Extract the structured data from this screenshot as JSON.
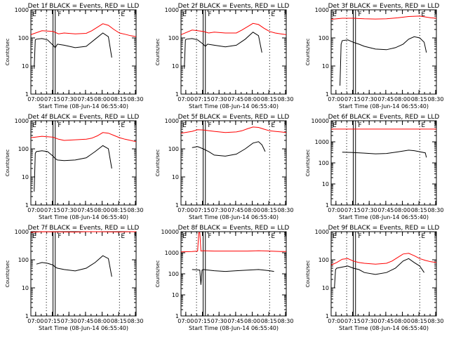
{
  "figure": {
    "x_tick_labels": [
      "07:00",
      "07:15",
      "07:30",
      "07:45",
      "08:00",
      "08:15",
      "08:30"
    ],
    "y_tick_labels_3dec": [
      "1",
      "10",
      "100",
      "1000"
    ],
    "y_tick_labels_4dec": [
      "1",
      "10",
      "100",
      "1000",
      "10000"
    ],
    "xlabel": "Start Time (08-Jun-14 06:55:40)",
    "ylabel": "Counts/sec",
    "events_color": "#000000",
    "lld_color": "#ff0000"
  },
  "chart_data": [
    {
      "type": "line",
      "title": "Det 1f BLACK = Events, RED = LLD",
      "ylog": true,
      "ylim": [
        1,
        1000
      ],
      "xlim_minutes": [
        0,
        95
      ],
      "markers": [
        {
          "label": "E",
          "x": 0
        },
        {
          "label": "F",
          "x": 23
        },
        {
          "label": "E",
          "x": 80
        }
      ],
      "dotted_lines": [
        14,
        80
      ],
      "solid_lines": [
        20,
        22
      ],
      "series": [
        {
          "name": "BLACK = Events",
          "color": "#000000",
          "x": [
            3,
            4,
            5,
            10,
            15,
            20,
            22,
            24,
            30,
            40,
            50,
            58,
            65,
            70,
            73
          ],
          "y": [
            8,
            85,
            90,
            95,
            85,
            55,
            45,
            60,
            55,
            45,
            50,
            90,
            150,
            110,
            20
          ]
        },
        {
          "name": "RED = LLD",
          "color": "#ff0000",
          "x": [
            0,
            10,
            20,
            25,
            30,
            40,
            50,
            55,
            60,
            65,
            70,
            75,
            80,
            85,
            90,
            95
          ],
          "y": [
            130,
            180,
            170,
            140,
            150,
            140,
            145,
            180,
            240,
            320,
            280,
            200,
            150,
            135,
            120,
            110
          ]
        }
      ]
    },
    {
      "type": "line",
      "title": "Det 2f BLACK = Events, RED = LLD",
      "ylog": true,
      "ylim": [
        1,
        1000
      ],
      "xlim_minutes": [
        0,
        95
      ],
      "markers": [
        {
          "label": "E",
          "x": 0
        },
        {
          "label": "F",
          "x": 23
        },
        {
          "label": "E",
          "x": 80
        }
      ],
      "dotted_lines": [
        14,
        80
      ],
      "solid_lines": [
        20,
        22
      ],
      "series": [
        {
          "name": "BLACK = Events",
          "color": "#000000",
          "x": [
            3,
            4,
            5,
            10,
            15,
            20,
            22,
            24,
            30,
            40,
            50,
            58,
            65,
            70,
            73
          ],
          "y": [
            8,
            85,
            90,
            95,
            85,
            60,
            50,
            60,
            55,
            48,
            55,
            90,
            160,
            120,
            30
          ]
        },
        {
          "name": "RED = LLD",
          "color": "#ff0000",
          "x": [
            0,
            10,
            20,
            25,
            30,
            40,
            50,
            55,
            60,
            65,
            70,
            75,
            80,
            85,
            90,
            95
          ],
          "y": [
            130,
            190,
            170,
            150,
            160,
            150,
            150,
            190,
            250,
            330,
            300,
            220,
            170,
            150,
            140,
            130
          ]
        }
      ]
    },
    {
      "type": "line",
      "title": "Det 3f BLACK = Events, RED = LLD",
      "ylog": true,
      "ylim": [
        1,
        1000
      ],
      "xlim_minutes": [
        0,
        95
      ],
      "markers": [
        {
          "label": "E",
          "x": 0
        },
        {
          "label": "F",
          "x": 23
        },
        {
          "label": "E",
          "x": 80
        }
      ],
      "dotted_lines": [
        14,
        80
      ],
      "solid_lines": [
        20,
        22
      ],
      "series": [
        {
          "name": "BLACK = Events",
          "color": "#000000",
          "x": [
            8,
            9,
            10,
            15,
            20,
            25,
            30,
            40,
            50,
            58,
            65,
            70,
            75,
            80,
            84,
            86
          ],
          "y": [
            2,
            60,
            80,
            85,
            70,
            60,
            50,
            40,
            38,
            45,
            60,
            90,
            110,
            100,
            70,
            30
          ]
        },
        {
          "name": "RED = LLD",
          "color": "#ff0000",
          "x": [
            0,
            10,
            20,
            30,
            40,
            50,
            60,
            70,
            80,
            85,
            90,
            95
          ],
          "y": [
            460,
            500,
            500,
            480,
            470,
            480,
            520,
            580,
            600,
            560,
            520,
            500
          ]
        }
      ]
    },
    {
      "type": "line",
      "title": "Det 4f BLACK = Events, RED = LLD",
      "ylog": true,
      "ylim": [
        1,
        1000
      ],
      "xlim_minutes": [
        0,
        95
      ],
      "markers": [
        {
          "label": "E",
          "x": 0
        },
        {
          "label": "F",
          "x": 23
        },
        {
          "label": "E",
          "x": 80
        }
      ],
      "dotted_lines": [
        14,
        80
      ],
      "solid_lines": [
        20,
        22
      ],
      "series": [
        {
          "name": "BLACK = Events",
          "color": "#000000",
          "x": [
            3,
            4,
            5,
            10,
            15,
            20,
            22,
            24,
            30,
            40,
            50,
            58,
            65,
            70,
            73
          ],
          "y": [
            3,
            70,
            80,
            85,
            80,
            55,
            45,
            40,
            38,
            40,
            48,
            80,
            130,
            100,
            20
          ]
        },
        {
          "name": "RED = LLD",
          "color": "#ff0000",
          "x": [
            0,
            10,
            20,
            25,
            30,
            40,
            50,
            55,
            60,
            65,
            70,
            75,
            80,
            85,
            90,
            95
          ],
          "y": [
            250,
            280,
            260,
            220,
            200,
            210,
            220,
            240,
            290,
            380,
            360,
            300,
            250,
            220,
            200,
            180
          ]
        }
      ]
    },
    {
      "type": "line",
      "title": "Det 5f BLACK = Events, RED = LLD",
      "ylog": true,
      "ylim": [
        1,
        1000
      ],
      "xlim_minutes": [
        0,
        95
      ],
      "markers": [
        {
          "label": "E",
          "x": 0
        },
        {
          "label": "F",
          "x": 23
        },
        {
          "label": "E",
          "x": 80
        }
      ],
      "dotted_lines": [
        14,
        80
      ],
      "solid_lines": [
        20,
        22
      ],
      "series": [
        {
          "name": "BLACK = Events",
          "color": "#000000",
          "x": [
            10,
            15,
            20,
            25,
            30,
            40,
            50,
            58,
            65,
            70,
            73,
            76
          ],
          "y": [
            110,
            120,
            100,
            80,
            60,
            55,
            65,
            100,
            160,
            180,
            140,
            80
          ]
        },
        {
          "name": "RED = LLD",
          "color": "#ff0000",
          "x": [
            0,
            10,
            15,
            20,
            30,
            40,
            50,
            55,
            60,
            65,
            70,
            75,
            80,
            85,
            90,
            95
          ],
          "y": [
            360,
            420,
            480,
            470,
            420,
            380,
            400,
            440,
            520,
            600,
            580,
            500,
            440,
            420,
            400,
            380
          ]
        }
      ]
    },
    {
      "type": "line",
      "title": "Det 6f BLACK = Events, RED = LLD",
      "ylog": true,
      "ylim": [
        1,
        10000
      ],
      "xlim_minutes": [
        0,
        95
      ],
      "markers": [
        {
          "label": "E",
          "x": 0
        },
        {
          "label": "F",
          "x": 23
        },
        {
          "label": "E",
          "x": 80
        }
      ],
      "dotted_lines": [
        14,
        80
      ],
      "solid_lines": [
        20,
        22
      ],
      "series": [
        {
          "name": "BLACK = Events",
          "color": "#000000",
          "x": [
            10,
            20,
            30,
            40,
            50,
            60,
            70,
            75,
            80,
            85,
            86
          ],
          "y": [
            320,
            310,
            290,
            270,
            280,
            330,
            400,
            380,
            340,
            300,
            180
          ]
        },
        {
          "name": "RED = LLD",
          "color": "#ff0000",
          "x": [
            0,
            95
          ],
          "y": [
            4000,
            4000
          ]
        }
      ]
    },
    {
      "type": "line",
      "title": "Det 7f BLACK = Events, RED = LLD",
      "ylog": true,
      "ylim": [
        1,
        1000
      ],
      "xlim_minutes": [
        0,
        95
      ],
      "markers": [
        {
          "label": "E",
          "x": 0
        },
        {
          "label": "F",
          "x": 23
        },
        {
          "label": "E",
          "x": 80
        }
      ],
      "dotted_lines": [
        14,
        80
      ],
      "solid_lines": [
        20,
        22
      ],
      "series": [
        {
          "name": "BLACK = Events",
          "color": "#000000",
          "x": [
            5,
            10,
            15,
            20,
            22,
            24,
            30,
            40,
            50,
            58,
            65,
            70,
            73
          ],
          "y": [
            70,
            80,
            75,
            65,
            55,
            50,
            45,
            40,
            50,
            80,
            140,
            110,
            25
          ]
        },
        {
          "name": "RED = LLD",
          "color": "#ff0000",
          "x": [
            0,
            10,
            20,
            30,
            40,
            50,
            60,
            70,
            80,
            90,
            95
          ],
          "y": [
            950,
            1000,
            990,
            980,
            970,
            1000,
            1000,
            990,
            980,
            1000,
            1000
          ]
        }
      ]
    },
    {
      "type": "line",
      "title": "Det 8f BLACK = Events, RED = LLD",
      "ylog": true,
      "ylim": [
        1,
        10000
      ],
      "xlim_minutes": [
        0,
        95
      ],
      "markers": [
        {
          "label": "E",
          "x": 0
        },
        {
          "label": "F",
          "x": 23
        },
        {
          "label": "E",
          "x": 80
        }
      ],
      "dotted_lines": [
        14,
        80
      ],
      "solid_lines": [
        20,
        22
      ],
      "series": [
        {
          "name": "BLACK = Events",
          "color": "#000000",
          "x": [
            10,
            14,
            17,
            18,
            19,
            20,
            25,
            30,
            40,
            50,
            60,
            70,
            75,
            80,
            84
          ],
          "y": [
            160,
            155,
            150,
            30,
            150,
            160,
            150,
            140,
            130,
            140,
            150,
            160,
            150,
            140,
            130
          ]
        },
        {
          "name": "RED = LLD",
          "color": "#ff0000",
          "x": [
            0,
            10,
            15,
            16,
            17,
            18,
            20,
            30,
            40,
            50,
            60,
            70,
            80,
            90,
            95
          ],
          "y": [
            1100,
            1150,
            1200,
            9000,
            9000,
            1200,
            1250,
            1200,
            1200,
            1200,
            1200,
            1250,
            1200,
            1150,
            1150
          ]
        }
      ]
    },
    {
      "type": "line",
      "title": "Det 9f BLACK = Events, RED = LLD",
      "ylog": true,
      "ylim": [
        1,
        1000
      ],
      "xlim_minutes": [
        0,
        95
      ],
      "markers": [
        {
          "label": "E",
          "x": 0
        },
        {
          "label": "F",
          "x": 23
        },
        {
          "label": "E",
          "x": 80
        }
      ],
      "dotted_lines": [
        14,
        80
      ],
      "solid_lines": [
        20,
        22
      ],
      "series": [
        {
          "name": "BLACK = Events",
          "color": "#000000",
          "x": [
            3,
            4,
            5,
            10,
            15,
            20,
            25,
            30,
            40,
            50,
            58,
            65,
            70,
            75,
            80,
            84
          ],
          "y": [
            10,
            45,
            50,
            55,
            60,
            50,
            45,
            35,
            30,
            35,
            50,
            90,
            110,
            80,
            60,
            35
          ]
        },
        {
          "name": "RED = LLD",
          "color": "#ff0000",
          "x": [
            0,
            5,
            10,
            15,
            20,
            25,
            30,
            40,
            50,
            55,
            60,
            65,
            70,
            75,
            80,
            85,
            90,
            95
          ],
          "y": [
            65,
            80,
            105,
            110,
            90,
            80,
            75,
            70,
            75,
            90,
            120,
            160,
            170,
            140,
            110,
            95,
            85,
            80
          ]
        }
      ]
    }
  ]
}
